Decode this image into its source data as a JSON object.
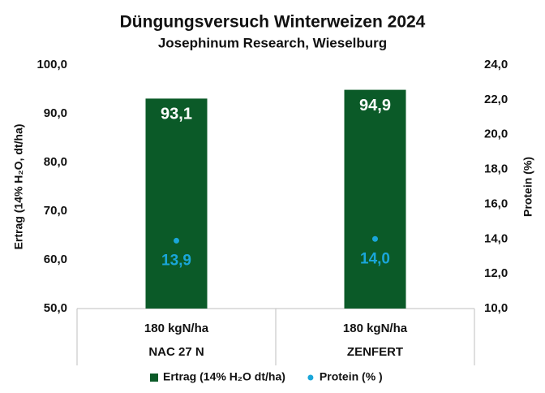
{
  "chart_data": {
    "type": "bar",
    "title": "Düngungsversuch Winterweizen 2024",
    "subtitle": "Josephinum Research, Wieselburg",
    "y_label": "Ertrag (14% H₂O, dt/ha)",
    "y2_label": "Protein (%)",
    "categories": [
      [
        "180 kgN/ha",
        "NAC 27 N"
      ],
      [
        "180 kgN/ha",
        "ZENFERT"
      ]
    ],
    "series": [
      {
        "name": "Ertrag (14%  H₂O dt/ha)",
        "type": "bar",
        "color": "#0b5a28",
        "values": [
          93.1,
          94.9
        ],
        "value_labels": [
          "93,1",
          "94,9"
        ]
      },
      {
        "name": "Protein (% )",
        "type": "scatter",
        "axis": "y2",
        "color": "#1aa6d9",
        "values": [
          13.9,
          14.0
        ],
        "value_labels": [
          "13,9",
          "14,0"
        ]
      }
    ],
    "ylim": [
      50,
      100
    ],
    "yticks": [
      {
        "value": 50,
        "label": "50,0"
      },
      {
        "value": 60,
        "label": "60,0"
      },
      {
        "value": 70,
        "label": "70,0"
      },
      {
        "value": 80,
        "label": "80,0"
      },
      {
        "value": 90,
        "label": "90,0"
      },
      {
        "value": 100,
        "label": "100,0"
      }
    ],
    "y2lim": [
      10,
      24
    ],
    "y2ticks": [
      {
        "value": 10,
        "label": "10,0"
      },
      {
        "value": 12,
        "label": "12,0"
      },
      {
        "value": 14,
        "label": "14,0"
      },
      {
        "value": 16,
        "label": "16,0"
      },
      {
        "value": 18,
        "label": "18,0"
      },
      {
        "value": 20,
        "label": "20,0"
      },
      {
        "value": 22,
        "label": "22,0"
      },
      {
        "value": 24,
        "label": "24,0"
      }
    ],
    "grid": false,
    "legend": "bottom"
  }
}
